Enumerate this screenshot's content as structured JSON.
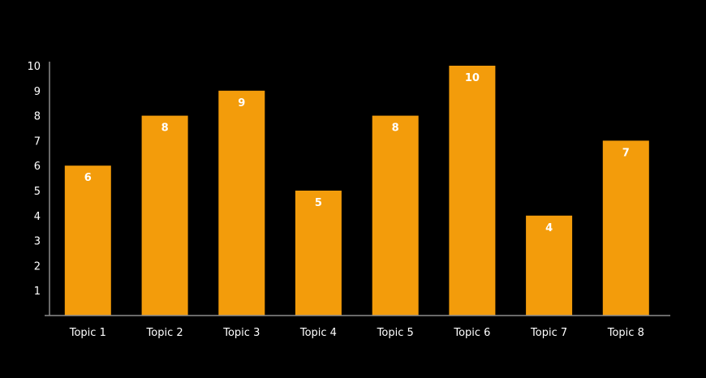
{
  "chart_data": {
    "type": "bar",
    "title": "",
    "xlabel": "",
    "ylabel": "",
    "categories": [
      "Topic 1",
      "Topic 2",
      "Topic 3",
      "Topic 4",
      "Topic 5",
      "Topic 6",
      "Topic 7",
      "Topic 8"
    ],
    "values": [
      6,
      8,
      9,
      5,
      8,
      10,
      4,
      7
    ],
    "ylim": [
      0,
      10
    ],
    "yticks": [
      1,
      2,
      3,
      4,
      5,
      6,
      7,
      8,
      9,
      10
    ],
    "grid": false,
    "data_labels": true,
    "colors": {
      "bar": "#f39c0b",
      "background": "#000000",
      "axis": "#8c8c8c",
      "text": "#ffffff"
    }
  }
}
